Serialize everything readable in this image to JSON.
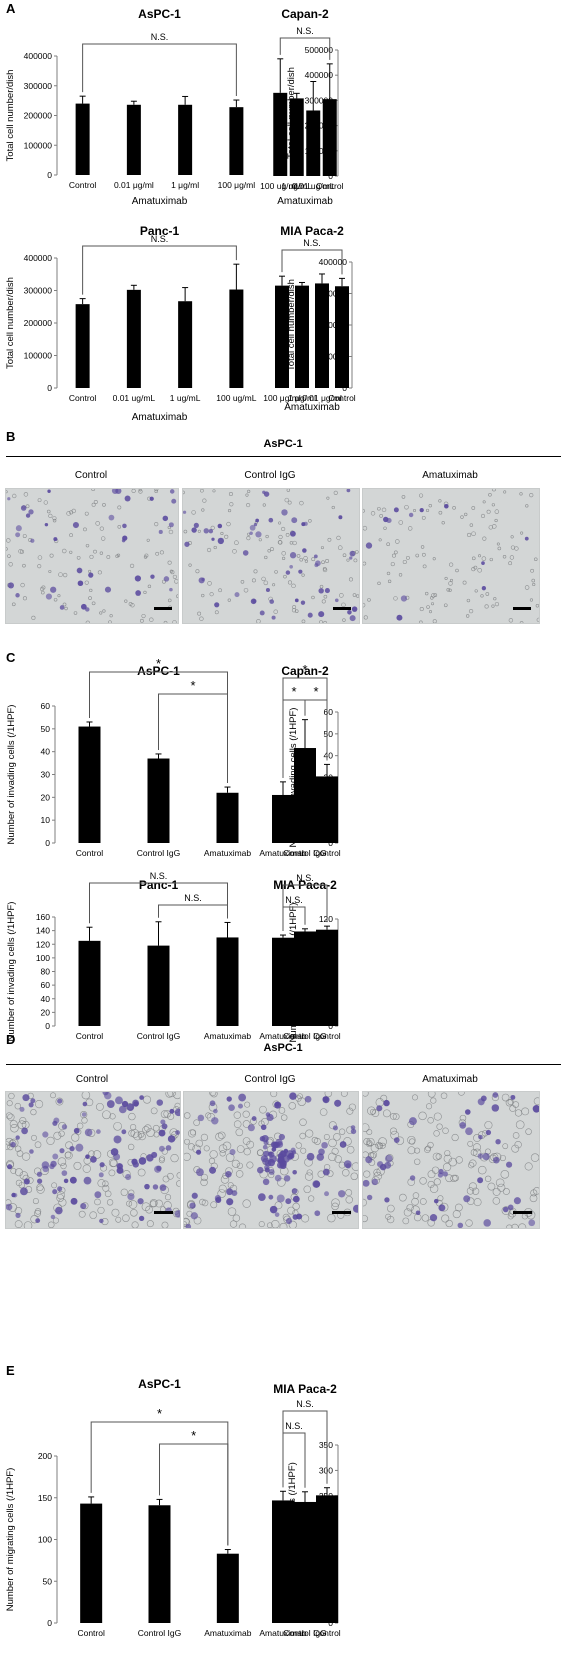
{
  "panels": {
    "A": "A",
    "B": "B",
    "C": "C",
    "D": "D",
    "E": "E"
  },
  "section_B": {
    "title": "AsPC-1",
    "images": [
      {
        "label": "Control",
        "stain": "light"
      },
      {
        "label": "Control IgG",
        "stain": "medium"
      },
      {
        "label": "Amatuximab",
        "stain": "sparse"
      }
    ]
  },
  "section_D": {
    "title": "AsPC-1",
    "images": [
      {
        "label": "Control",
        "stain": "dense"
      },
      {
        "label": "Control IgG",
        "stain": "dense-cluster"
      },
      {
        "label": "Amatuximab",
        "stain": "medium"
      }
    ]
  },
  "colors": {
    "bar": "#000000",
    "micro_bg": "#d3d6d6",
    "stain": "#5a4a9e",
    "cell_outline": "#7a7d80"
  },
  "chart_data": [
    {
      "id": "A1",
      "type": "bar",
      "title": "AsPC-1",
      "categories": [
        "Control",
        "0.01 μg/ml",
        "1 μg/ml",
        "100 μg/ml"
      ],
      "values": [
        240000,
        236000,
        236000,
        228000
      ],
      "errors": [
        25000,
        12000,
        28000,
        24000
      ],
      "ylabel": "Total cell number/dish",
      "xlabel": "Amatuximab",
      "ylim": [
        0,
        400000
      ],
      "yticks": [
        0,
        100000,
        200000,
        300000,
        400000
      ],
      "brackets": [
        {
          "from": 0,
          "to": 3,
          "level": 0,
          "label": "N.S."
        }
      ]
    },
    {
      "id": "A2",
      "type": "bar",
      "title": "Capan-2",
      "categories": [
        "Control",
        "0.01 ug/mL",
        "1 ug/mL",
        "100 ug/mL"
      ],
      "values": [
        305000,
        260000,
        308000,
        330000
      ],
      "errors": [
        140000,
        115000,
        20000,
        135000
      ],
      "ylabel": "Total cell number/dish",
      "xlabel": "Amatuximab",
      "ylim": [
        0,
        500000
      ],
      "yticks": [
        0,
        100000,
        200000,
        300000,
        400000,
        500000
      ],
      "brackets": [
        {
          "from": 0,
          "to": 3,
          "level": 0,
          "label": "N.S."
        }
      ]
    },
    {
      "id": "A3",
      "type": "bar",
      "title": "Panc-1",
      "categories": [
        "Control",
        "0.01 ug/mL",
        "1 ug/mL",
        "100 ug/mL"
      ],
      "values": [
        258000,
        302000,
        267000,
        303000
      ],
      "errors": [
        17000,
        14000,
        42000,
        78000
      ],
      "ylabel": "Total cell number/dish",
      "xlabel": "Amatuximab",
      "ylim": [
        0,
        400000
      ],
      "yticks": [
        0,
        100000,
        200000,
        300000,
        400000
      ],
      "brackets": [
        {
          "from": 0,
          "to": 3,
          "level": 0,
          "label": "N.S."
        }
      ]
    },
    {
      "id": "A4",
      "type": "bar",
      "title": "MIA Paca-2",
      "categories": [
        "Control",
        "0.01 μg/ml",
        "1 μg/ml",
        "100 μg/ml"
      ],
      "values": [
        323000,
        332000,
        325000,
        325000
      ],
      "errors": [
        25000,
        30000,
        10000,
        30000
      ],
      "ylabel": "Total cell number/dish",
      "xlabel": "Amatuximab",
      "ylim": [
        0,
        400000
      ],
      "yticks": [
        0,
        100000,
        200000,
        300000,
        400000
      ],
      "brackets": [
        {
          "from": 0,
          "to": 3,
          "level": 0,
          "label": "N.S."
        }
      ]
    },
    {
      "id": "C1",
      "type": "bar",
      "title": "AsPC-1",
      "categories": [
        "Control",
        "Control IgG",
        "Amatuximab"
      ],
      "values": [
        51,
        37,
        22
      ],
      "errors": [
        2,
        2,
        2.5
      ],
      "ylabel": "Number of invading cells (/1HPF)",
      "xlabel": "",
      "ylim": [
        0,
        60
      ],
      "yticks": [
        0,
        10,
        20,
        30,
        40,
        50,
        60
      ],
      "brackets": [
        {
          "from": 0,
          "to": 2,
          "level": 1,
          "label": "*"
        },
        {
          "from": 1,
          "to": 2,
          "level": 0,
          "label": "*"
        }
      ]
    },
    {
      "id": "C2",
      "type": "bar",
      "title": "Capan-2",
      "categories": [
        "Control",
        "Control IgG",
        "Amatuximab"
      ],
      "values": [
        30.5,
        43.5,
        22
      ],
      "errors": [
        5.5,
        13,
        6
      ],
      "ylabel": "Number of invading cells (/1HPF)",
      "xlabel": "",
      "ylim": [
        0,
        60
      ],
      "yticks": [
        0,
        10,
        20,
        30,
        40,
        50,
        60
      ],
      "brackets": [
        {
          "from": 0,
          "to": 2,
          "level": 1,
          "label": "*"
        },
        {
          "from": 0,
          "to": 1,
          "level": 0,
          "label": "*"
        },
        {
          "from": 1,
          "to": 2,
          "level": 0,
          "label": "*"
        }
      ]
    },
    {
      "id": "C3",
      "type": "bar",
      "title": "Panc-1",
      "categories": [
        "Control",
        "Control IgG",
        "Amatuximab"
      ],
      "values": [
        125,
        118,
        130
      ],
      "errors": [
        20,
        35,
        22
      ],
      "ylabel": "Number of invading cells (/1HPF)",
      "xlabel": "",
      "ylim": [
        0,
        160
      ],
      "yticks": [
        0,
        20,
        40,
        60,
        80,
        100,
        120,
        140,
        160
      ],
      "brackets": [
        {
          "from": 0,
          "to": 2,
          "level": 1,
          "label": "N.S."
        },
        {
          "from": 1,
          "to": 2,
          "level": 0,
          "label": "N.S."
        }
      ]
    },
    {
      "id": "C4",
      "type": "bar",
      "title": "MIA Paca-2",
      "categories": [
        "Control",
        "Control IgG",
        "Amatuximab"
      ],
      "values": [
        108,
        106,
        99
      ],
      "errors": [
        4,
        3,
        3
      ],
      "ylabel": "Number of invading cells (/1HPF)",
      "xlabel": "",
      "ylim": [
        0,
        120
      ],
      "yticks": [
        0,
        20,
        40,
        60,
        80,
        100,
        120
      ],
      "brackets": [
        {
          "from": 0,
          "to": 2,
          "level": 1,
          "label": "N.S."
        },
        {
          "from": 1,
          "to": 2,
          "level": 0,
          "label": "N.S."
        }
      ]
    },
    {
      "id": "E1",
      "type": "bar",
      "title": "AsPC-1",
      "categories": [
        "Control",
        "Control IgG",
        "Amatuximab"
      ],
      "values": [
        143,
        141,
        83
      ],
      "errors": [
        8,
        7,
        5
      ],
      "ylabel": "Number of migrating cells (/1HPF)",
      "xlabel": "",
      "ylim": [
        0,
        200
      ],
      "yticks": [
        0,
        50,
        100,
        150,
        200
      ],
      "brackets": [
        {
          "from": 0,
          "to": 2,
          "level": 1,
          "label": "*"
        },
        {
          "from": 1,
          "to": 2,
          "level": 0,
          "label": "*"
        }
      ]
    },
    {
      "id": "E2",
      "type": "bar",
      "title": "MIA Paca-2",
      "categories": [
        "Control",
        "Control IgG",
        "Amatuximab"
      ],
      "values": [
        251,
        238,
        241
      ],
      "errors": [
        15,
        20,
        18
      ],
      "ylabel": "Number of migrating cells (/1HPF)",
      "xlabel": "",
      "ylim": [
        0,
        350
      ],
      "yticks": [
        0,
        50,
        100,
        150,
        200,
        250,
        300,
        350
      ],
      "brackets": [
        {
          "from": 0,
          "to": 2,
          "level": 1,
          "label": "N.S."
        },
        {
          "from": 1,
          "to": 2,
          "level": 0,
          "label": "N.S."
        }
      ]
    }
  ]
}
